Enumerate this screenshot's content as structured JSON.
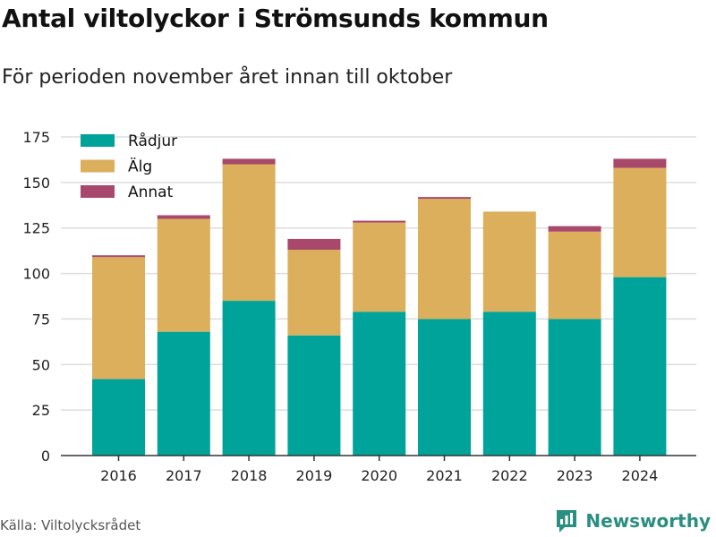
{
  "title": "Antal viltolyckor i Strömsunds kommun",
  "subtitle": "För perioden november året innan till oktober",
  "source": "Källa: Viltolycksrådet",
  "brand": {
    "name": "Newsworthy",
    "icon": "newsworthy-logo-icon",
    "color": "#2a8f80"
  },
  "chart_data": {
    "type": "bar",
    "stacked": true,
    "categories": [
      "2016",
      "2017",
      "2018",
      "2019",
      "2020",
      "2021",
      "2022",
      "2023",
      "2024"
    ],
    "series": [
      {
        "name": "Rådjur",
        "color": "#00a39a",
        "values": [
          42,
          68,
          85,
          66,
          79,
          75,
          79,
          75,
          98
        ]
      },
      {
        "name": "Älg",
        "color": "#dbaf5b",
        "values": [
          67,
          62,
          75,
          47,
          49,
          66,
          55,
          48,
          60
        ]
      },
      {
        "name": "Annat",
        "color": "#a8486b",
        "values": [
          1,
          2,
          3,
          6,
          1,
          1,
          0,
          3,
          5
        ]
      }
    ],
    "ylim": [
      0,
      175
    ],
    "yticks": [
      "0",
      "25",
      "50",
      "75",
      "100",
      "125",
      "150",
      "175"
    ],
    "grid": true,
    "legend_position": "top-left"
  }
}
